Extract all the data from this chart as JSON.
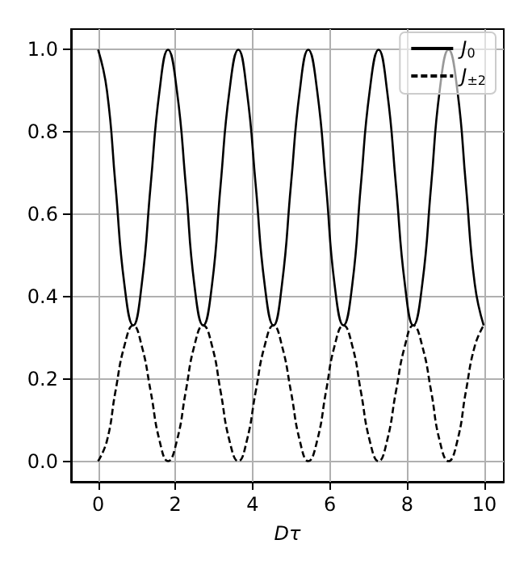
{
  "chart_data": {
    "type": "line",
    "xlabel": "Dτ",
    "x": [
      0,
      0.23,
      0.45,
      0.68,
      0.91,
      1.13,
      1.36,
      1.59,
      1.81,
      2.04,
      2.27,
      2.49,
      2.72,
      2.95,
      3.17,
      3.4,
      3.63,
      3.85,
      4.08,
      4.31,
      4.54,
      4.76,
      4.99,
      5.22,
      5.44,
      5.67,
      5.9,
      6.12,
      6.35,
      6.58,
      6.8,
      7.03,
      7.26,
      7.48,
      7.71,
      7.94,
      8.16,
      8.39,
      8.62,
      8.84,
      9.07,
      9.3,
      9.52,
      9.75,
      9.98
    ],
    "series": [
      {
        "name": "J$_{0}$",
        "color": "#000000",
        "line_style": "solid",
        "values": [
          1.0,
          0.9,
          0.67,
          0.43,
          0.33,
          0.43,
          0.67,
          0.9,
          1.0,
          0.9,
          0.67,
          0.43,
          0.33,
          0.43,
          0.67,
          0.9,
          1.0,
          0.9,
          0.67,
          0.43,
          0.33,
          0.43,
          0.67,
          0.9,
          1.0,
          0.9,
          0.67,
          0.43,
          0.33,
          0.43,
          0.67,
          0.9,
          1.0,
          0.9,
          0.67,
          0.43,
          0.33,
          0.43,
          0.67,
          0.9,
          1.0,
          0.9,
          0.67,
          0.43,
          0.33
        ]
      },
      {
        "name": "J$_{±2}$",
        "color": "#000000",
        "line_style": "dashed",
        "values": [
          0,
          0.05,
          0.17,
          0.28,
          0.33,
          0.28,
          0.17,
          0.05,
          0,
          0.05,
          0.17,
          0.28,
          0.33,
          0.28,
          0.17,
          0.05,
          0,
          0.05,
          0.17,
          0.28,
          0.33,
          0.28,
          0.17,
          0.05,
          0,
          0.05,
          0.17,
          0.28,
          0.33,
          0.28,
          0.17,
          0.05,
          0,
          0.05,
          0.17,
          0.28,
          0.33,
          0.28,
          0.17,
          0.05,
          0,
          0.05,
          0.17,
          0.28,
          0.33
        ]
      }
    ],
    "xlim": [
      -0.7,
      10.5
    ],
    "xticks": [
      0,
      2,
      4,
      6,
      8,
      10
    ],
    "ylim": [
      -0.05,
      1.05
    ],
    "yticks": [
      {
        "value": 0,
        "label": "0.0"
      },
      {
        "value": 0.2,
        "label": "0.2"
      },
      {
        "value": 0.4,
        "label": "0.4"
      },
      {
        "value": 0.6,
        "label": "0.6"
      },
      {
        "value": 0.8,
        "label": "0.8"
      },
      {
        "value": 1,
        "label": "1.0"
      }
    ],
    "grid": true,
    "legend": "top right"
  }
}
